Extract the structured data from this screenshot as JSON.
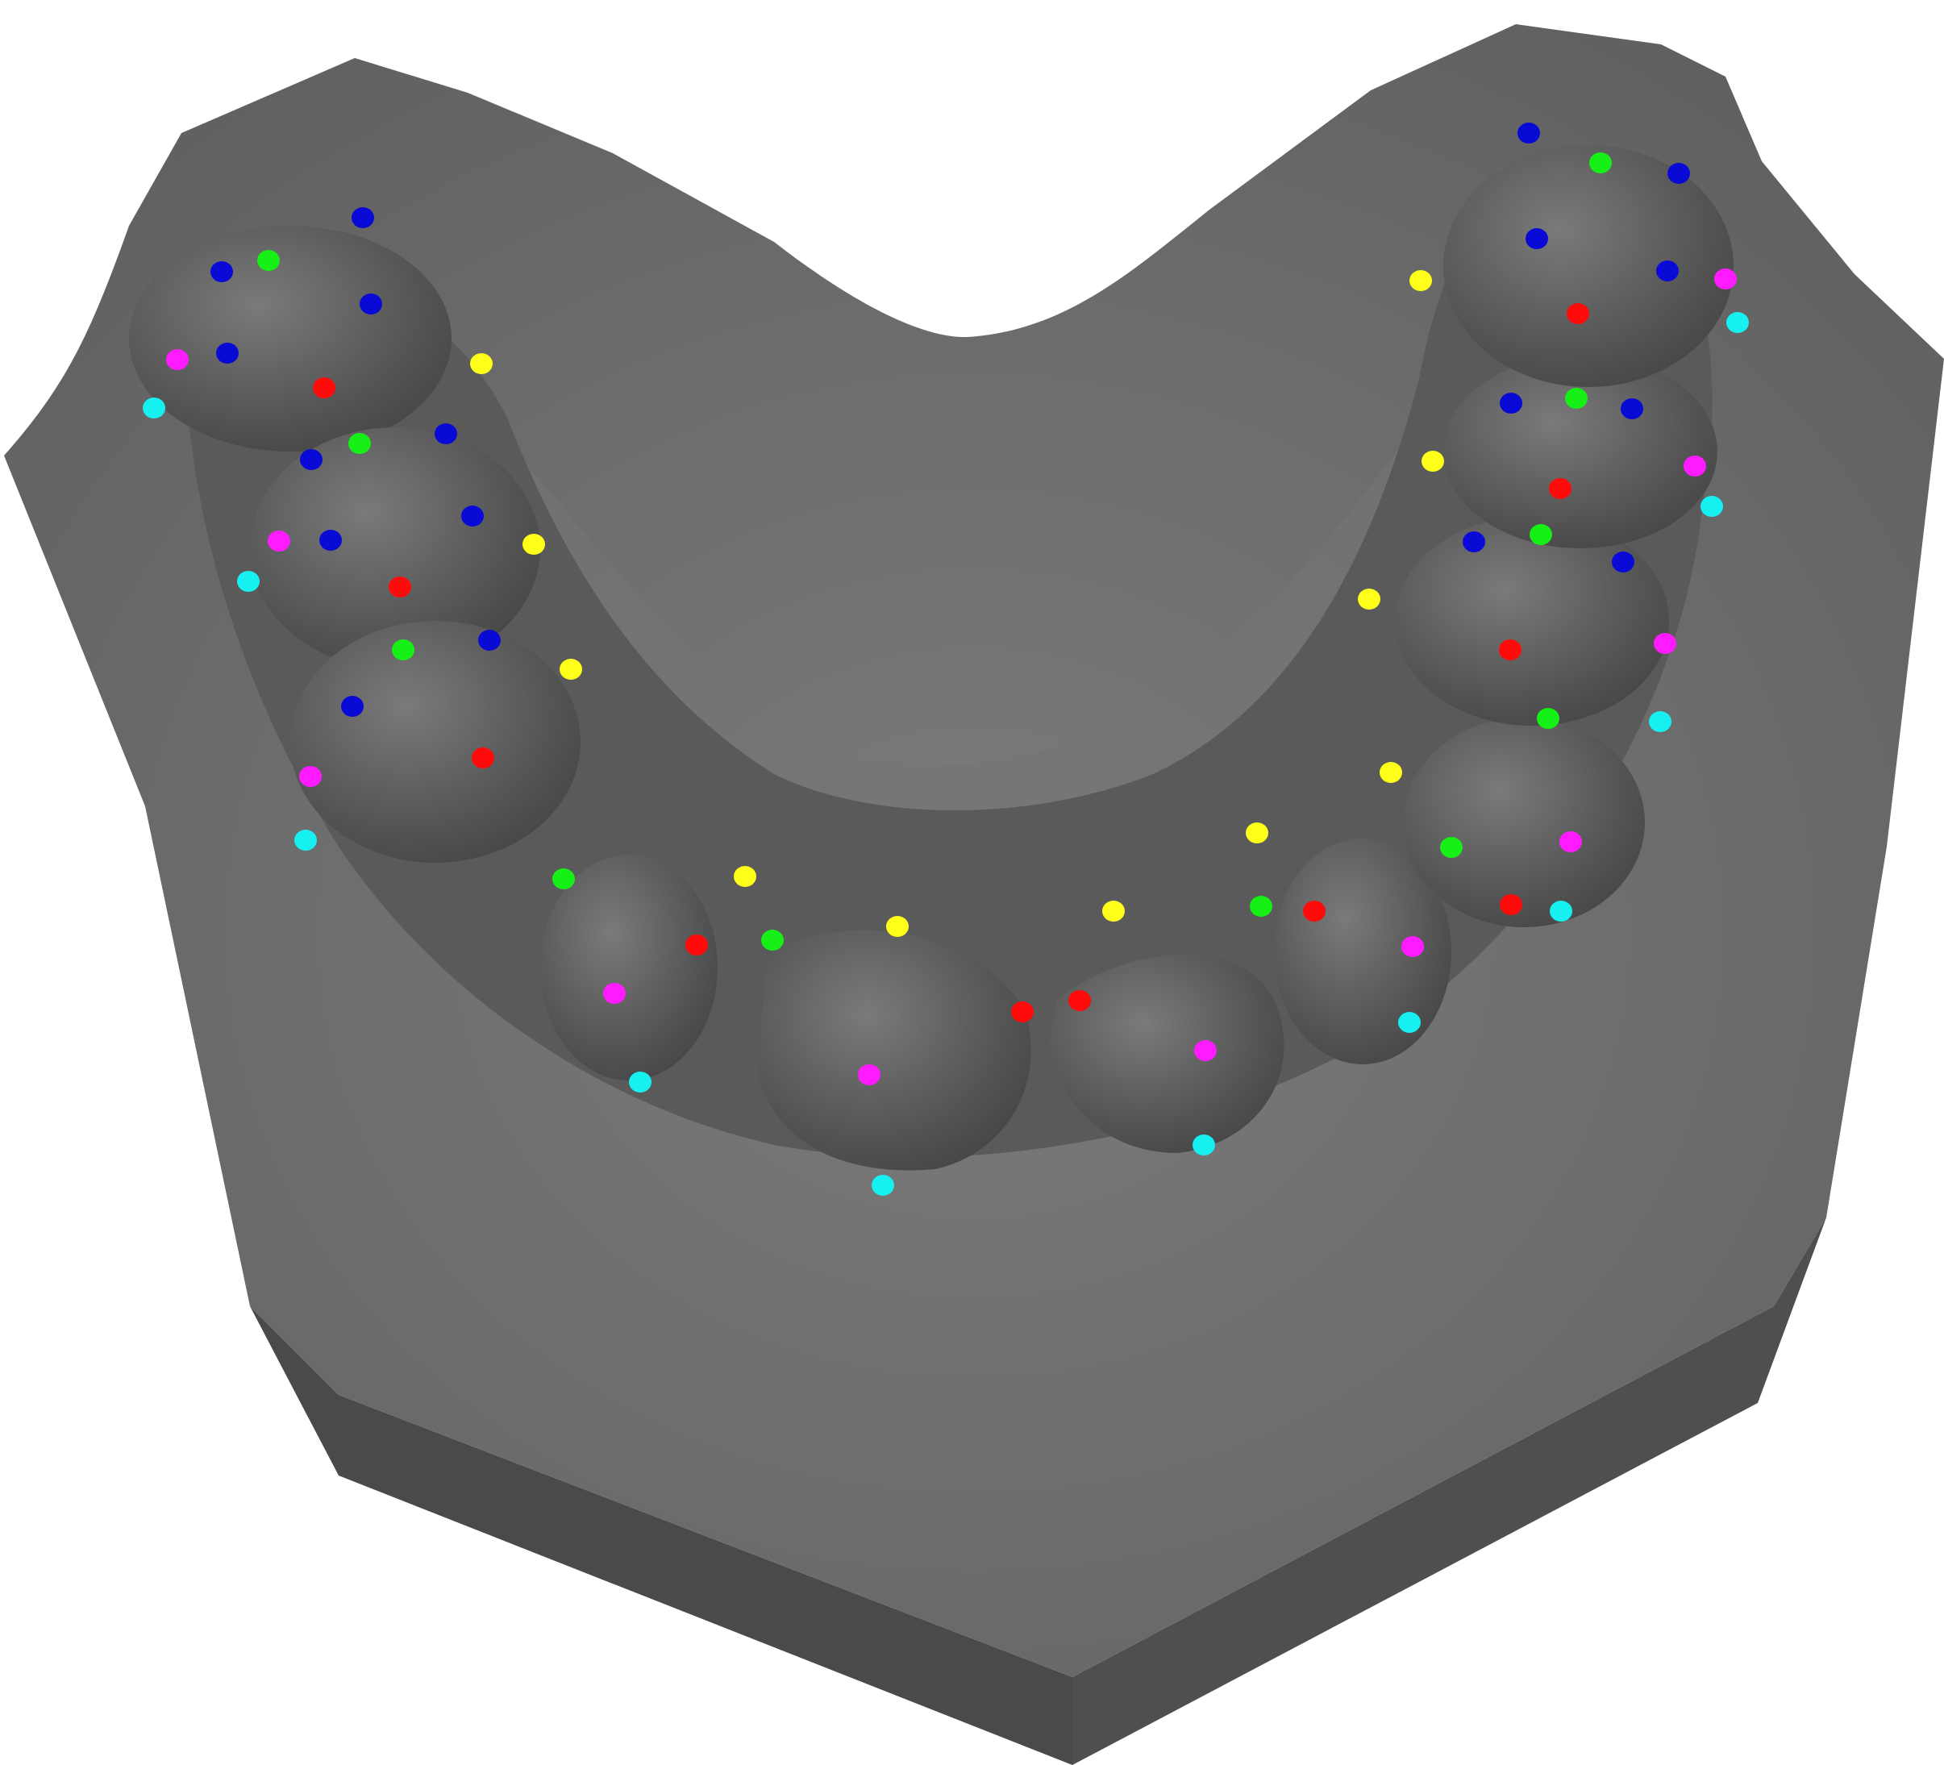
{
  "scene": {
    "subject": "dental-arch-3d-model",
    "background_color": "#ffffff",
    "base_colors": {
      "top_face": "#6a6a6a",
      "top_face_light": "#8a8a8a",
      "side_front": "#4f4f4f",
      "side_left": "#4a4a4a",
      "teeth": "#555555",
      "teeth_highlight": "#7a7a7a",
      "gum": "#5c5c5c"
    }
  },
  "landmark_legend": {
    "blue": "#0a0ad6",
    "green": "#16f016",
    "red": "#ff0b0b",
    "yellow": "#ffff19",
    "magenta": "#ff1bff",
    "cyan": "#16f0f0"
  },
  "landmark_counts": {
    "blue": 16,
    "green": 12,
    "red": 14,
    "yellow": 14,
    "magenta": 14,
    "cyan": 14
  }
}
